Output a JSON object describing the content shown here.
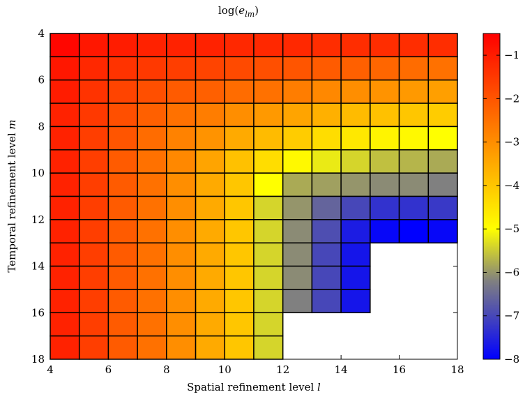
{
  "chart_data": {
    "type": "heatmap",
    "title": "log(e_lm)",
    "title_parts": {
      "base": "log(",
      "var": "e",
      "sub": "lm",
      "close": ")"
    },
    "xlabel": "Spatial refinement level ",
    "xlabel_var": "l",
    "ylabel": "Temporal refinement level ",
    "ylabel_var": "m",
    "xlim": [
      4,
      18
    ],
    "ylim": [
      4,
      18
    ],
    "y_inverted": true,
    "x_ticks": [
      "4",
      "6",
      "8",
      "10",
      "12",
      "14",
      "16",
      "18"
    ],
    "y_ticks": [
      "4",
      "6",
      "8",
      "10",
      "12",
      "14",
      "16",
      "18"
    ],
    "l_levels": [
      4,
      5,
      6,
      7,
      8,
      9,
      10,
      11,
      12,
      13,
      14,
      15,
      16,
      17
    ],
    "m_levels": [
      4,
      5,
      6,
      7,
      8,
      9,
      10,
      11,
      12,
      13,
      14,
      15,
      16,
      17
    ],
    "values": [
      [
        -0.6,
        -0.9,
        -1.0,
        -1.1,
        -1.1,
        -1.1,
        -1.2,
        -1.2,
        -1.2,
        -1.3,
        -1.3,
        -1.3,
        -1.3,
        -1.3
      ],
      [
        -0.9,
        -1.2,
        -1.4,
        -1.5,
        -1.6,
        -1.7,
        -1.8,
        -1.9,
        -2.0,
        -2.1,
        -2.2,
        -2.3,
        -2.4,
        -2.5
      ],
      [
        -1.0,
        -1.4,
        -1.7,
        -1.9,
        -2.1,
        -2.2,
        -2.4,
        -2.5,
        -2.7,
        -2.9,
        -3.0,
        -3.1,
        -3.2,
        -3.3
      ],
      [
        -1.1,
        -1.5,
        -1.9,
        -2.2,
        -2.5,
        -2.7,
        -3.0,
        -3.2,
        -3.4,
        -3.6,
        -3.8,
        -3.9,
        -4.0,
        -4.1
      ],
      [
        -1.1,
        -1.6,
        -2.0,
        -2.4,
        -2.8,
        -3.1,
        -3.5,
        -3.8,
        -4.1,
        -4.4,
        -4.6,
        -4.8,
        -4.9,
        -5.0
      ],
      [
        -1.1,
        -1.6,
        -2.1,
        -2.5,
        -2.9,
        -3.4,
        -3.9,
        -4.4,
        -4.9,
        -5.2,
        -5.4,
        -5.6,
        -5.7,
        -5.8
      ],
      [
        -1.1,
        -1.6,
        -2.1,
        -2.5,
        -3.0,
        -3.5,
        -4.0,
        -5.0,
        -5.8,
        -5.9,
        -6.0,
        -6.1,
        -6.1,
        -6.2
      ],
      [
        -1.1,
        -1.6,
        -2.1,
        -2.5,
        -3.0,
        -3.5,
        -4.0,
        -5.4,
        -6.0,
        -6.6,
        -7.0,
        -7.3,
        -7.3,
        -7.2
      ],
      [
        -1.1,
        -1.6,
        -2.1,
        -2.5,
        -3.0,
        -3.5,
        -4.0,
        -5.4,
        -6.1,
        -6.9,
        -7.6,
        -7.9,
        -8.0,
        -7.9
      ],
      [
        -1.1,
        -1.6,
        -2.1,
        -2.5,
        -3.0,
        -3.5,
        -4.0,
        -5.4,
        -6.1,
        -7.0,
        -7.7,
        null,
        null,
        null
      ],
      [
        -1.1,
        -1.6,
        -2.1,
        -2.5,
        -3.0,
        -3.5,
        -4.0,
        -5.4,
        -6.1,
        -7.0,
        -7.7,
        null,
        null,
        null
      ],
      [
        -1.1,
        -1.6,
        -2.1,
        -2.5,
        -3.0,
        -3.5,
        -4.0,
        -5.4,
        -6.2,
        -7.0,
        -7.7,
        null,
        null,
        null
      ],
      [
        -1.1,
        -1.6,
        -2.1,
        -2.5,
        -3.0,
        -3.5,
        -4.0,
        -5.4,
        null,
        null,
        null,
        null,
        null,
        null
      ],
      [
        -1.1,
        -1.6,
        -2.1,
        -2.5,
        -3.0,
        -3.5,
        -4.0,
        -5.4,
        null,
        null,
        null,
        null,
        null,
        null
      ]
    ],
    "colorbar": {
      "min": -8.0,
      "max": -0.5,
      "ticks": [
        "-1",
        "-2",
        "-3",
        "-4",
        "-5",
        "-6",
        "-7",
        "-8"
      ],
      "colormap": [
        {
          "v": -8.0,
          "c": "#0000ff"
        },
        {
          "v": -6.2,
          "c": "#808080"
        },
        {
          "v": -5.0,
          "c": "#ffff00"
        },
        {
          "v": -0.5,
          "c": "#ff0000"
        }
      ]
    },
    "grid": true
  }
}
